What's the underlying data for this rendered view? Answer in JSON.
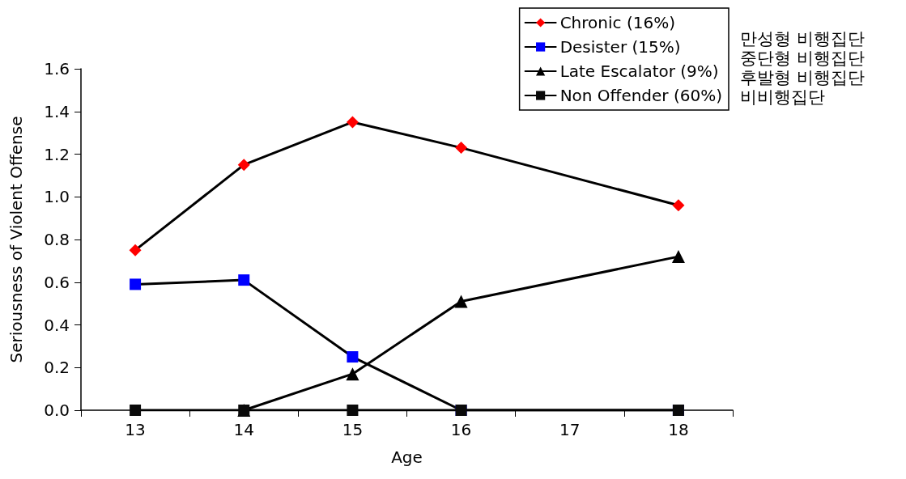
{
  "chart_data": {
    "type": "line",
    "xlabel": "Age",
    "ylabel": "Seriousness of Violent Offense",
    "categories": [
      "13",
      "14",
      "15",
      "16",
      "17",
      "18"
    ],
    "series": [
      {
        "name": "Chronic (16%)",
        "color": "#ff0000",
        "marker": "diamond",
        "values": [
          0.75,
          1.15,
          1.35,
          1.23,
          null,
          0.96
        ]
      },
      {
        "name": "Desister (15%)",
        "color": "#0000ff",
        "marker": "square",
        "values": [
          0.59,
          0.61,
          0.25,
          0.0,
          null,
          0.0
        ]
      },
      {
        "name": "Late Escalator (9%)",
        "color": "#000000",
        "marker": "triangle",
        "values": [
          null,
          0.0,
          0.17,
          0.51,
          null,
          0.72
        ]
      },
      {
        "name": "Non Offender (60%)",
        "color": "#0a0a0a",
        "marker": "square",
        "values": [
          0.0,
          0.0,
          0.0,
          0.0,
          null,
          0.0
        ]
      }
    ],
    "ylim": [
      0,
      1.6
    ],
    "yticks": [
      {
        "value": 0,
        "label": "0.0"
      },
      {
        "value": 0.2,
        "label": "0.2"
      },
      {
        "value": 0.4,
        "label": "0.4"
      },
      {
        "value": 0.6,
        "label": "0.6"
      },
      {
        "value": 0.8,
        "label": "0.8"
      },
      {
        "value": 1.0,
        "label": "1.0"
      },
      {
        "value": 1.2,
        "label": "1.2"
      },
      {
        "value": 1.4,
        "label": "1.4"
      },
      {
        "value": 1.6,
        "label": "1.6"
      }
    ],
    "grid": false,
    "legend": "top right",
    "line_style": "solid",
    "annotations": [
      "만성형 비행집단",
      "중단형 비행집단",
      "후발형 비행집단",
      "비비행집단"
    ]
  }
}
